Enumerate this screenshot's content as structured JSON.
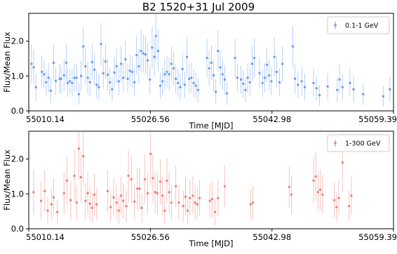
{
  "title": "B2 1520+31 Jul 2009",
  "chart_data": [
    {
      "type": "scatter",
      "panel": "top",
      "series": [
        {
          "name": "0.1-1 GeV",
          "color": "#6d9eeb",
          "points": [
            [
              55010.5,
              1.35,
              0.55
            ],
            [
              55010.8,
              1.25,
              0.5
            ],
            [
              55011.1,
              0.68,
              0.4
            ],
            [
              55011.9,
              1.12,
              0.45
            ],
            [
              55012.2,
              1.05,
              0.4
            ],
            [
              55012.5,
              0.82,
              0.38
            ],
            [
              55012.8,
              0.95,
              0.42
            ],
            [
              55013.1,
              0.58,
              0.35
            ],
            [
              55013.5,
              1.38,
              0.5
            ],
            [
              55013.8,
              0.86,
              0.4
            ],
            [
              55014.3,
              0.92,
              0.42
            ],
            [
              55014.5,
              0.92,
              0.4
            ],
            [
              55014.9,
              1.02,
              0.45
            ],
            [
              55015.2,
              1.38,
              0.55
            ],
            [
              55015.4,
              0.8,
              0.4
            ],
            [
              55015.7,
              0.85,
              0.38
            ],
            [
              55016.0,
              0.8,
              0.4
            ],
            [
              55016.3,
              0.95,
              0.42
            ],
            [
              55016.6,
              0.95,
              0.4
            ],
            [
              55016.9,
              0.48,
              0.3
            ],
            [
              55017.2,
              1.0,
              0.45
            ],
            [
              55017.5,
              1.85,
              0.55
            ],
            [
              55017.8,
              1.28,
              0.5
            ],
            [
              55018.1,
              0.95,
              0.45
            ],
            [
              55018.4,
              0.82,
              0.4
            ],
            [
              55018.7,
              1.4,
              0.5
            ],
            [
              55019.0,
              1.18,
              0.45
            ],
            [
              55019.3,
              0.75,
              0.4
            ],
            [
              55019.6,
              0.68,
              0.38
            ],
            [
              55019.9,
              1.92,
              0.6
            ],
            [
              55020.2,
              1.08,
              0.45
            ],
            [
              55020.5,
              1.42,
              0.5
            ],
            [
              55020.8,
              1.04,
              0.45
            ],
            [
              55021.1,
              0.82,
              0.4
            ],
            [
              55021.4,
              0.62,
              0.35
            ],
            [
              55021.7,
              1.1,
              0.45
            ],
            [
              55022.0,
              1.28,
              0.5
            ],
            [
              55022.3,
              0.85,
              0.4
            ],
            [
              55022.6,
              1.35,
              0.5
            ],
            [
              55022.9,
              0.95,
              0.42
            ],
            [
              55023.2,
              1.48,
              0.55
            ],
            [
              55023.5,
              0.92,
              0.42
            ],
            [
              55023.8,
              1.15,
              0.45
            ],
            [
              55024.1,
              1.12,
              0.45
            ],
            [
              55024.4,
              0.82,
              0.4
            ],
            [
              55024.7,
              1.6,
              0.55
            ],
            [
              55025.0,
              1.28,
              0.5
            ],
            [
              55025.3,
              1.72,
              0.6
            ],
            [
              55025.6,
              1.65,
              0.55
            ],
            [
              55025.9,
              1.62,
              0.55
            ],
            [
              55026.2,
              1.45,
              0.5
            ],
            [
              55026.5,
              0.9,
              0.42
            ],
            [
              55026.8,
              1.82,
              0.6
            ],
            [
              55027.1,
              1.55,
              0.55
            ],
            [
              55027.3,
              2.15,
              0.7
            ],
            [
              55027.6,
              1.72,
              0.6
            ],
            [
              55027.9,
              0.72,
              0.38
            ],
            [
              55028.2,
              0.85,
              0.4
            ],
            [
              55028.5,
              1.05,
              0.45
            ],
            [
              55028.8,
              1.12,
              0.45
            ],
            [
              55029.1,
              1.05,
              0.45
            ],
            [
              55029.4,
              1.35,
              0.5
            ],
            [
              55029.7,
              1.22,
              0.5
            ],
            [
              55030.0,
              0.92,
              0.42
            ],
            [
              55030.3,
              0.8,
              0.4
            ],
            [
              55030.6,
              0.68,
              0.38
            ],
            [
              55030.9,
              1.2,
              0.45
            ],
            [
              55031.2,
              0.75,
              0.38
            ],
            [
              55031.5,
              1.55,
              0.55
            ],
            [
              55031.8,
              0.92,
              0.42
            ],
            [
              55032.1,
              0.95,
              0.42
            ],
            [
              55032.4,
              0.8,
              0.4
            ],
            [
              55032.7,
              0.72,
              0.38
            ],
            [
              55033.0,
              0.6,
              0.35
            ],
            [
              55034.2,
              1.52,
              0.55
            ],
            [
              55034.5,
              1.22,
              0.5
            ],
            [
              55034.8,
              1.38,
              0.5
            ],
            [
              55035.1,
              1.02,
              0.45
            ],
            [
              55035.4,
              0.55,
              0.35
            ],
            [
              55035.7,
              1.72,
              0.6
            ],
            [
              55036.0,
              1.25,
              0.5
            ],
            [
              55036.3,
              1.05,
              0.45
            ],
            [
              55036.6,
              0.9,
              0.42
            ],
            [
              55036.9,
              0.5,
              0.32
            ],
            [
              55038.0,
              1.52,
              0.55
            ],
            [
              55038.3,
              0.95,
              0.42
            ],
            [
              55038.8,
              0.9,
              0.4
            ],
            [
              55039.1,
              0.78,
              0.4
            ],
            [
              55039.4,
              0.6,
              0.35
            ],
            [
              55039.7,
              0.95,
              0.42
            ],
            [
              55040.0,
              0.82,
              0.4
            ],
            [
              55040.3,
              1.35,
              0.5
            ],
            [
              55040.6,
              1.52,
              0.55
            ],
            [
              55041.3,
              1.08,
              0.45
            ],
            [
              55041.7,
              0.8,
              0.4
            ],
            [
              55042.0,
              0.95,
              0.42
            ],
            [
              55042.3,
              1.32,
              0.5
            ],
            [
              55042.6,
              1.02,
              0.45
            ],
            [
              55042.9,
              0.85,
              0.4
            ],
            [
              55043.3,
              1.55,
              0.55
            ],
            [
              55043.6,
              1.12,
              0.45
            ],
            [
              55044.0,
              0.82,
              0.4
            ],
            [
              55044.4,
              1.35,
              0.5
            ],
            [
              55045.8,
              1.85,
              0.6
            ],
            [
              55046.1,
              0.92,
              0.42
            ],
            [
              55046.5,
              0.75,
              0.38
            ],
            [
              55047.0,
              0.85,
              0.4
            ],
            [
              55047.4,
              0.68,
              0.38
            ],
            [
              55048.6,
              0.8,
              0.4
            ],
            [
              55049.0,
              0.65,
              0.36
            ],
            [
              55049.4,
              0.45,
              0.3
            ],
            [
              55050.5,
              0.7,
              0.38
            ],
            [
              55051.8,
              0.6,
              0.35
            ],
            [
              55052.1,
              0.9,
              0.42
            ],
            [
              55052.5,
              0.68,
              0.38
            ],
            [
              55053.5,
              0.8,
              0.4
            ],
            [
              55054.0,
              0.62,
              0.36
            ],
            [
              55055.3,
              0.48,
              0.3
            ],
            [
              55058.0,
              0.42,
              0.3
            ],
            [
              55058.9,
              0.62,
              0.35
            ]
          ]
        }
      ],
      "xlabel": "Time [MJD]",
      "ylabel": "Flux/Mean Flux",
      "xlim": [
        55010.14,
        55059.39
      ],
      "ylim": [
        0.0,
        2.8
      ],
      "xticks": [
        "55010.14",
        "55026.56",
        "55042.98",
        "55059.39"
      ],
      "yticks": [
        "0.0",
        "1.0",
        "2.0"
      ],
      "legend": "top-right",
      "grid": false
    },
    {
      "type": "scatter",
      "panel": "bottom",
      "series": [
        {
          "name": "1-300 GeV",
          "color": "#e8837a",
          "points": [
            [
              55010.8,
              1.05,
              0.65
            ],
            [
              55011.8,
              0.8,
              0.55
            ],
            [
              55012.3,
              1.08,
              0.6
            ],
            [
              55012.7,
              0.52,
              0.4
            ],
            [
              55013.2,
              0.7,
              0.45
            ],
            [
              55013.5,
              0.9,
              0.55
            ],
            [
              55014.0,
              0.48,
              0.35
            ],
            [
              55014.9,
              1.02,
              0.6
            ],
            [
              55015.3,
              1.38,
              0.7
            ],
            [
              55015.8,
              0.82,
              0.55
            ],
            [
              55016.3,
              1.52,
              0.75
            ],
            [
              55016.6,
              0.75,
              0.5
            ],
            [
              55016.9,
              2.3,
              0.9
            ],
            [
              55017.2,
              1.48,
              0.75
            ],
            [
              55017.5,
              2.08,
              0.85
            ],
            [
              55017.8,
              0.8,
              0.5
            ],
            [
              55018.1,
              1.02,
              0.6
            ],
            [
              55018.4,
              0.72,
              0.45
            ],
            [
              55018.7,
              0.6,
              0.42
            ],
            [
              55019.0,
              0.98,
              0.6
            ],
            [
              55019.3,
              0.7,
              0.45
            ],
            [
              55020.8,
              1.08,
              0.6
            ],
            [
              55021.2,
              0.62,
              0.42
            ],
            [
              55021.6,
              0.9,
              0.55
            ],
            [
              55022.0,
              0.75,
              0.5
            ],
            [
              55022.3,
              0.52,
              0.4
            ],
            [
              55022.6,
              0.95,
              0.55
            ],
            [
              55022.9,
              0.8,
              0.5
            ],
            [
              55023.3,
              0.65,
              0.45
            ],
            [
              55023.6,
              1.52,
              0.75
            ],
            [
              55024.0,
              1.42,
              0.7
            ],
            [
              55024.4,
              0.78,
              0.5
            ],
            [
              55024.8,
              1.15,
              0.6
            ],
            [
              55025.1,
              1.15,
              0.6
            ],
            [
              55025.4,
              0.6,
              0.42
            ],
            [
              55025.8,
              1.42,
              0.7
            ],
            [
              55026.2,
              1.02,
              0.6
            ],
            [
              55026.6,
              2.15,
              0.9
            ],
            [
              55026.9,
              1.45,
              0.7
            ],
            [
              55027.2,
              1.05,
              0.6
            ],
            [
              55027.5,
              1.02,
              0.6
            ],
            [
              55027.9,
              1.35,
              0.65
            ],
            [
              55028.2,
              0.95,
              0.55
            ],
            [
              55028.5,
              0.52,
              0.4
            ],
            [
              55028.8,
              1.38,
              0.65
            ],
            [
              55029.1,
              1.05,
              0.6
            ],
            [
              55029.4,
              0.75,
              0.5
            ],
            [
              55030.0,
              1.22,
              0.6
            ],
            [
              55030.4,
              0.75,
              0.5
            ],
            [
              55031.0,
              0.65,
              0.45
            ],
            [
              55031.3,
              0.92,
              0.55
            ],
            [
              55031.6,
              0.52,
              0.4
            ],
            [
              55031.9,
              0.88,
              0.52
            ],
            [
              55032.3,
              0.95,
              0.55
            ],
            [
              55032.6,
              0.75,
              0.5
            ],
            [
              55032.9,
              0.7,
              0.45
            ],
            [
              55033.2,
              0.88,
              0.52
            ],
            [
              55034.6,
              0.8,
              0.5
            ],
            [
              55034.9,
              0.85,
              0.52
            ],
            [
              55035.3,
              0.48,
              0.38
            ],
            [
              55035.7,
              0.88,
              0.52
            ],
            [
              55036.6,
              1.22,
              0.6
            ],
            [
              55040.1,
              0.7,
              0.45
            ],
            [
              55040.4,
              0.75,
              0.48
            ],
            [
              55045.3,
              1.2,
              0.6
            ],
            [
              55045.6,
              0.98,
              0.55
            ],
            [
              55048.6,
              1.38,
              0.65
            ],
            [
              55048.9,
              1.5,
              0.7
            ],
            [
              55049.2,
              1.05,
              0.55
            ],
            [
              55049.5,
              1.12,
              0.58
            ],
            [
              55049.8,
              0.98,
              0.55
            ],
            [
              55051.4,
              0.82,
              0.5
            ],
            [
              55051.7,
              0.62,
              0.42
            ],
            [
              55052.0,
              0.88,
              0.52
            ],
            [
              55052.5,
              1.9,
              0.85
            ],
            [
              55053.4,
              0.65,
              0.45
            ],
            [
              55053.7,
              0.95,
              0.55
            ]
          ]
        }
      ],
      "xlabel": "Time [MJD]",
      "ylabel": "Flux/Mean Flux",
      "xlim": [
        55010.14,
        55059.39
      ],
      "ylim": [
        0.0,
        2.8
      ],
      "xticks": [
        "55010.14",
        "55026.56",
        "55042.98",
        "55059.39"
      ],
      "yticks": [
        "0.0",
        "1.0",
        "2.0"
      ],
      "legend": "top-right",
      "grid": false
    }
  ]
}
